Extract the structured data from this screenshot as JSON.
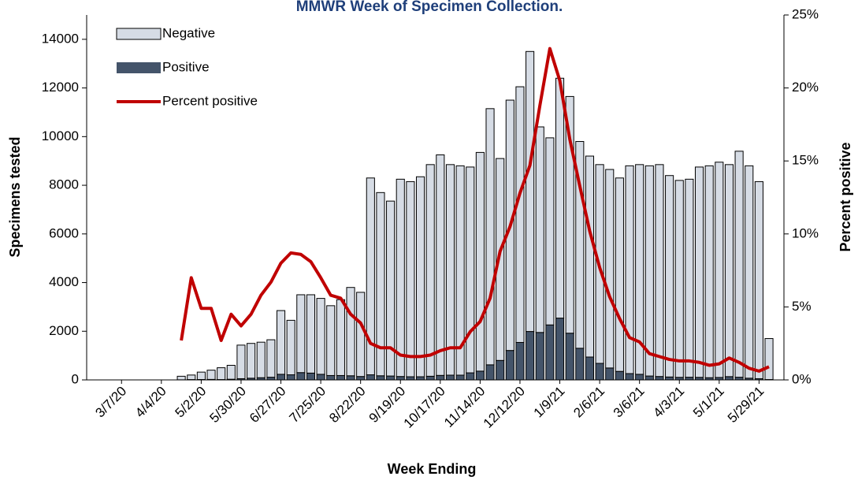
{
  "chart_data": {
    "type": "bar",
    "title": "MMWR Week of Specimen Collection.",
    "x_label": "Week Ending",
    "y_label": "Specimens tested",
    "y2_label": "Percent positive",
    "stacked": true,
    "legend": "upper-left",
    "categories": [
      null,
      null,
      null,
      "3/7/20",
      null,
      null,
      null,
      "4/4/20",
      null,
      null,
      null,
      "5/2/20",
      null,
      null,
      null,
      "5/30/20",
      null,
      null,
      null,
      "6/27/20",
      null,
      null,
      null,
      "7/25/20",
      null,
      null,
      null,
      "8/22/20",
      null,
      null,
      null,
      "9/19/20",
      null,
      null,
      null,
      "10/17/20",
      null,
      null,
      null,
      "11/14/20",
      null,
      null,
      null,
      "12/12/20",
      null,
      null,
      null,
      "1/9/21",
      null,
      null,
      null,
      "2/6/21",
      null,
      null,
      null,
      "3/6/21",
      null,
      null,
      null,
      "4/3/21",
      null,
      null,
      null,
      "5/1/21",
      null,
      null,
      null,
      "5/29/21",
      null,
      null
    ],
    "series": [
      {
        "name": "Negative",
        "color": "#d6dce5",
        "values": [
          null,
          null,
          null,
          null,
          null,
          null,
          null,
          null,
          null,
          146,
          186,
          304,
          380,
          486,
          573,
          1380,
          1430,
          1460,
          1540,
          2620,
          2240,
          3200,
          3220,
          3120,
          2870,
          3120,
          3630,
          3460,
          8090,
          7530,
          7190,
          8110,
          8020,
          8220,
          8700,
          9065,
          8655,
          8605,
          8460,
          8990,
          10530,
          8300,
          10290,
          10510,
          11510,
          8450,
          7690,
          9860,
          9730,
          8500,
          8260,
          8170,
          8160,
          7950,
          8540,
          8620,
          8640,
          8710,
          8280,
          8095,
          8140,
          8645,
          8710,
          8850,
          8715,
          9290,
          8730,
          8100,
          1685,
          null
        ]
      },
      {
        "name": "Positive",
        "color": "#44546a",
        "values": [
          null,
          null,
          null,
          null,
          null,
          null,
          null,
          null,
          null,
          4,
          14,
          16,
          20,
          14,
          27,
          50,
          70,
          90,
          110,
          230,
          210,
          300,
          280,
          230,
          180,
          180,
          170,
          140,
          210,
          170,
          160,
          140,
          130,
          130,
          150,
          185,
          195,
          195,
          290,
          360,
          620,
          800,
          1210,
          1540,
          1990,
          1950,
          2260,
          2540,
          1920,
          1300,
          940,
          680,
          490,
          350,
          260,
          230,
          160,
          140,
          120,
          105,
          110,
          105,
          90,
          100,
          135,
          110,
          70,
          50,
          15,
          null
        ]
      },
      {
        "name": "Percent positive",
        "color": "#c00000",
        "type": "line",
        "axis": "y2",
        "values": [
          null,
          null,
          null,
          null,
          null,
          null,
          null,
          null,
          null,
          2.7,
          7.0,
          4.9,
          4.9,
          2.7,
          4.5,
          3.7,
          4.5,
          5.8,
          6.7,
          8.0,
          8.7,
          8.6,
          8.1,
          7.0,
          5.8,
          5.6,
          4.5,
          3.9,
          2.5,
          2.2,
          2.2,
          1.7,
          1.6,
          1.6,
          1.7,
          2.0,
          2.2,
          2.2,
          3.3,
          4.0,
          5.6,
          8.8,
          10.5,
          12.8,
          14.7,
          18.8,
          22.7,
          20.5,
          16.5,
          13.3,
          10.2,
          7.7,
          5.7,
          4.2,
          2.9,
          2.6,
          1.8,
          1.6,
          1.4,
          1.3,
          1.3,
          1.2,
          1.0,
          1.1,
          1.5,
          1.2,
          0.8,
          0.6,
          0.9,
          null
        ]
      }
    ],
    "ylim": [
      0,
      15000
    ],
    "yticks": [
      0,
      2000,
      4000,
      6000,
      8000,
      10000,
      12000,
      14000
    ],
    "y2lim": [
      0,
      25
    ],
    "y2ticks": [
      {
        "value": 0,
        "label": "0%"
      },
      {
        "value": 5,
        "label": "5%"
      },
      {
        "value": 10,
        "label": "10%"
      },
      {
        "value": 15,
        "label": "15%"
      },
      {
        "value": 20,
        "label": "20%"
      },
      {
        "value": 25,
        "label": "25%"
      }
    ]
  }
}
